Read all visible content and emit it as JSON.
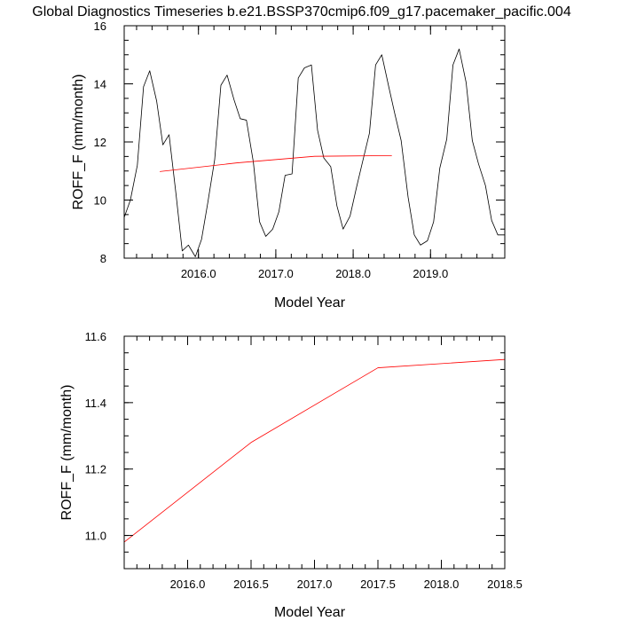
{
  "title": "Global Diagnostics Timeseries b.e21.BSSP370cmip6.f09_g17.pacemaker_pacific.004",
  "chart_data": [
    {
      "type": "line",
      "xlabel": "Model Year",
      "ylabel": "ROFF_F (mm/month)",
      "xlim": [
        2015.04,
        2019.96
      ],
      "ylim": [
        8,
        16
      ],
      "xticks": [
        "2016.0",
        "2017.0",
        "2018.0",
        "2019.0"
      ],
      "yticks": [
        "8",
        "10",
        "12",
        "14",
        "16"
      ],
      "series": [
        {
          "color": "#000000",
          "x": [
            2015.04,
            2015.12,
            2015.21,
            2015.29,
            2015.37,
            2015.46,
            2015.54,
            2015.62,
            2015.71,
            2015.79,
            2015.87,
            2015.96,
            2016.04,
            2016.12,
            2016.21,
            2016.29,
            2016.37,
            2016.46,
            2016.54,
            2016.62,
            2016.71,
            2016.79,
            2016.87,
            2016.96,
            2017.04,
            2017.12,
            2017.21,
            2017.29,
            2017.37,
            2017.46,
            2017.54,
            2017.62,
            2017.71,
            2017.79,
            2017.87,
            2017.96,
            2018.04,
            2018.12,
            2018.21,
            2018.29,
            2018.37,
            2018.46,
            2018.54,
            2018.62,
            2018.71,
            2018.79,
            2018.87,
            2018.96,
            2019.04,
            2019.12,
            2019.21,
            2019.29,
            2019.37,
            2019.46,
            2019.54,
            2019.62,
            2019.71,
            2019.79,
            2019.87,
            2019.96
          ],
          "y": [
            9.4,
            10.0,
            11.2,
            13.9,
            14.45,
            13.4,
            11.9,
            12.25,
            10.2,
            8.25,
            8.45,
            8.05,
            8.65,
            9.9,
            11.4,
            13.95,
            14.3,
            13.45,
            12.8,
            12.75,
            11.3,
            9.25,
            8.75,
            9.0,
            9.6,
            10.85,
            10.9,
            14.2,
            14.55,
            14.65,
            12.4,
            11.45,
            11.15,
            9.8,
            9.0,
            9.45,
            10.4,
            11.3,
            12.3,
            14.65,
            15.0,
            13.9,
            12.95,
            12.05,
            10.1,
            8.8,
            8.45,
            8.6,
            9.25,
            11.1,
            12.1,
            14.65,
            15.2,
            14.05,
            12.05,
            11.25,
            10.5,
            9.3,
            8.8,
            8.8
          ]
        },
        {
          "color": "#ff0000",
          "x": [
            2015.5,
            2016.5,
            2017.5,
            2018.5
          ],
          "y": [
            10.98,
            11.28,
            11.505,
            11.53
          ]
        }
      ]
    },
    {
      "type": "line",
      "xlabel": "Model Year",
      "ylabel": "ROFF_F (mm/month)",
      "xlim": [
        2015.5,
        2018.5
      ],
      "ylim": [
        10.9,
        11.6
      ],
      "xticks": [
        "2016.0",
        "2016.5",
        "2017.0",
        "2017.5",
        "2018.0",
        "2018.5"
      ],
      "yticks": [
        "11.0",
        "11.2",
        "11.4",
        "11.6"
      ],
      "series": [
        {
          "color": "#ff0000",
          "x": [
            2015.5,
            2016.5,
            2017.5,
            2018.5
          ],
          "y": [
            10.98,
            11.28,
            11.505,
            11.53
          ]
        }
      ]
    }
  ]
}
